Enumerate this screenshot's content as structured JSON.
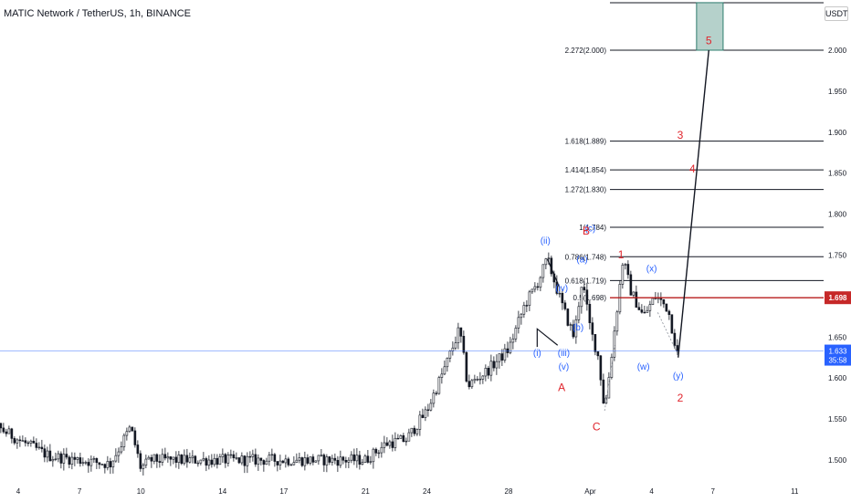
{
  "chart_data": {
    "type": "candlestick",
    "title": "MATIC Network / TetherUS, 1h, BINANCE",
    "unit": "USDT",
    "ylim": [
      1.475,
      2.058
    ],
    "y_ticks": [
      "1.500",
      "1.550",
      "1.600",
      "1.650",
      "1.700",
      "1.750",
      "1.800",
      "1.850",
      "1.900",
      "1.950",
      "2.000"
    ],
    "x_ticks": [
      {
        "label": "4",
        "day": 4
      },
      {
        "label": "7",
        "day": 7
      },
      {
        "label": "10",
        "day": 10
      },
      {
        "label": "14",
        "day": 14
      },
      {
        "label": "17",
        "day": 17
      },
      {
        "label": "21",
        "day": 21
      },
      {
        "label": "24",
        "day": 24
      },
      {
        "label": "28",
        "day": 28
      },
      {
        "label": "Apr",
        "day": 32
      },
      {
        "label": "4",
        "day": 35
      },
      {
        "label": "7",
        "day": 38
      },
      {
        "label": "11",
        "day": 42
      }
    ],
    "price_path": [
      [
        1.0,
        1.64
      ],
      [
        2.0,
        1.575
      ],
      [
        3.0,
        1.54
      ],
      [
        4.0,
        1.525
      ],
      [
        5.5,
        1.505
      ],
      [
        7.0,
        1.5
      ],
      [
        8.5,
        1.495
      ],
      [
        9.5,
        1.54
      ],
      [
        10.0,
        1.49
      ],
      [
        10.5,
        1.5
      ],
      [
        21.0,
        1.5
      ],
      [
        22.0,
        1.52
      ],
      [
        23.0,
        1.525
      ],
      [
        24.0,
        1.56
      ],
      [
        25.0,
        1.62
      ],
      [
        25.6,
        1.66
      ],
      [
        26.0,
        1.59
      ],
      [
        27.0,
        1.61
      ],
      [
        28.0,
        1.635
      ],
      [
        28.8,
        1.69
      ],
      [
        29.4,
        1.715
      ],
      [
        29.9,
        1.745
      ],
      [
        30.6,
        1.69
      ],
      [
        31.2,
        1.65
      ],
      [
        31.6,
        1.72
      ],
      [
        32.0,
        1.66
      ],
      [
        32.4,
        1.625
      ],
      [
        32.7,
        1.56
      ],
      [
        33.0,
        1.62
      ],
      [
        33.6,
        1.745
      ],
      [
        34.0,
        1.705
      ],
      [
        34.6,
        1.675
      ],
      [
        35.2,
        1.7
      ],
      [
        35.8,
        1.685
      ],
      [
        36.3,
        1.625
      ]
    ],
    "current_price": {
      "value": 1.633,
      "label": "1.633",
      "countdown": "35:58"
    },
    "alert_price": {
      "value": 1.698,
      "label": "1.698"
    },
    "fib_levels": [
      {
        "label": "2.272(2.000)",
        "price": 2.0
      },
      {
        "label": "1.618(1.889)",
        "price": 1.889
      },
      {
        "label": "1.414(1.854)",
        "price": 1.854
      },
      {
        "label": "1.272(1.830)",
        "price": 1.83
      },
      {
        "label": "1(1.784)",
        "price": 1.784
      },
      {
        "label": "0.786(1.748)",
        "price": 1.748
      },
      {
        "label": "0.618(1.719)",
        "price": 1.719
      },
      {
        "label": "0.5(1.698)",
        "price": 1.698
      }
    ],
    "target_zone": {
      "day_start": 37.2,
      "day_end": 38.5,
      "price_low": 2.0,
      "price_high": 2.058
    },
    "projection": [
      [
        36.3,
        1.625
      ],
      [
        37.8,
        2.0
      ]
    ],
    "wave_labels": [
      {
        "text": "(i)",
        "day": 29.4,
        "price": 1.627,
        "color": "#2962ff"
      },
      {
        "text": "(ii)",
        "day": 29.8,
        "price": 1.764,
        "color": "#2962ff"
      },
      {
        "text": "(iii)",
        "day": 30.7,
        "price": 1.627,
        "color": "#2962ff"
      },
      {
        "text": "(iv)",
        "day": 30.6,
        "price": 1.706,
        "color": "#2962ff"
      },
      {
        "text": "(v)",
        "day": 30.7,
        "price": 1.61,
        "color": "#2962ff"
      },
      {
        "text": "(a)",
        "day": 31.6,
        "price": 1.741,
        "color": "#2962ff"
      },
      {
        "text": "(b)",
        "day": 31.4,
        "price": 1.658,
        "color": "#2962ff"
      },
      {
        "text": "(c)",
        "day": 32.0,
        "price": 1.779,
        "color": "#2962ff"
      },
      {
        "text": "(x)",
        "day": 35.0,
        "price": 1.73,
        "color": "#2962ff"
      },
      {
        "text": "(w)",
        "day": 34.6,
        "price": 1.61,
        "color": "#2962ff"
      },
      {
        "text": "(y)",
        "day": 36.3,
        "price": 1.599,
        "color": "#2962ff"
      },
      {
        "text": "A",
        "day": 30.6,
        "price": 1.584,
        "color": "#e0242c"
      },
      {
        "text": "B",
        "day": 31.8,
        "price": 1.775,
        "color": "#e0242c"
      },
      {
        "text": "C",
        "day": 32.3,
        "price": 1.536,
        "color": "#e0242c"
      },
      {
        "text": "1",
        "day": 33.5,
        "price": 1.746,
        "color": "#e0242c"
      },
      {
        "text": "2",
        "day": 36.4,
        "price": 1.571,
        "color": "#e0242c"
      },
      {
        "text": "3",
        "day": 36.4,
        "price": 1.892,
        "color": "#e0242c"
      },
      {
        "text": "4",
        "day": 37.0,
        "price": 1.851,
        "color": "#e0242c"
      },
      {
        "text": "5",
        "day": 37.8,
        "price": 2.007,
        "color": "#e0242c"
      }
    ]
  },
  "colors": {
    "candles": "#131722",
    "axis_text": "#131722",
    "level_line": "#131722",
    "current_line": "#2962ff",
    "current_badge": "#2962ff",
    "alert_line": "#b71c1c",
    "alert_badge": "#c62828",
    "target_fill": "#a8c9c2",
    "target_border": "#2e7d6e",
    "wave_blue": "#2962ff",
    "wave_red": "#e0242c"
  }
}
